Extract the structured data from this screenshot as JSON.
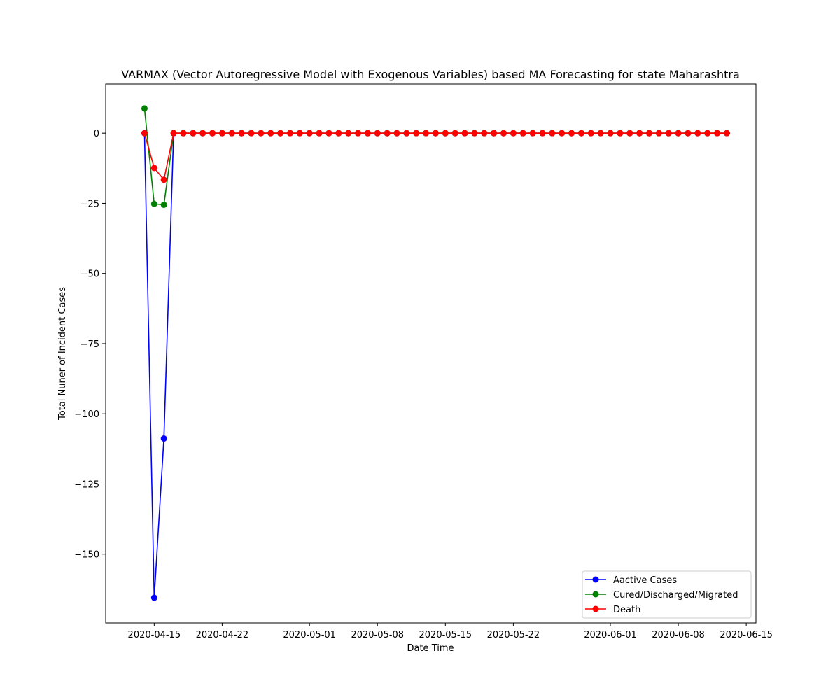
{
  "chart_data": {
    "type": "line",
    "title": "VARMAX (Vector Autoregressive Model with Exogenous Variables) based MA Forecasting for state Maharashtra",
    "xlabel": "Date Time",
    "ylabel": "Total Nuner of Incident Cases",
    "x_start": "2020-04-14",
    "x_end": "2020-06-13",
    "xlim": [
      "2020-04-10",
      "2020-06-16"
    ],
    "ylim": [
      -174.5,
      17.5
    ],
    "x_ticks": [
      "2020-04-15",
      "2020-04-22",
      "2020-05-01",
      "2020-05-08",
      "2020-05-15",
      "2020-05-22",
      "2020-06-01",
      "2020-06-08",
      "2020-06-15"
    ],
    "y_ticks": [
      0,
      -25,
      -50,
      -75,
      -100,
      -125,
      -150
    ],
    "y_tick_labels": [
      "0",
      "−25",
      "−50",
      "−75",
      "−100",
      "−125",
      "−150"
    ],
    "legend_position": "lower-right",
    "grid": false,
    "series": [
      {
        "name": "Aactive Cases",
        "color": "#0000ff",
        "values": [
          0,
          -165.5,
          -108.8,
          0,
          0,
          0,
          0,
          0,
          0,
          0,
          0,
          0,
          0,
          0,
          0,
          0,
          0,
          0,
          0,
          0,
          0,
          0,
          0,
          0,
          0,
          0,
          0,
          0,
          0,
          0,
          0,
          0,
          0,
          0,
          0,
          0,
          0,
          0,
          0,
          0,
          0,
          0,
          0,
          0,
          0,
          0,
          0,
          0,
          0,
          0,
          0,
          0,
          0,
          0,
          0,
          0,
          0,
          0,
          0,
          0,
          0
        ]
      },
      {
        "name": "Cured/Discharged/Migrated",
        "color": "#008000",
        "values": [
          8.8,
          -25.2,
          -25.5,
          0,
          0,
          0,
          0,
          0,
          0,
          0,
          0,
          0,
          0,
          0,
          0,
          0,
          0,
          0,
          0,
          0,
          0,
          0,
          0,
          0,
          0,
          0,
          0,
          0,
          0,
          0,
          0,
          0,
          0,
          0,
          0,
          0,
          0,
          0,
          0,
          0,
          0,
          0,
          0,
          0,
          0,
          0,
          0,
          0,
          0,
          0,
          0,
          0,
          0,
          0,
          0,
          0,
          0,
          0,
          0,
          0,
          0
        ]
      },
      {
        "name": "Death",
        "color": "#ff0000",
        "values": [
          0,
          -12.4,
          -16.6,
          0,
          0,
          0,
          0,
          0,
          0,
          0,
          0,
          0,
          0,
          0,
          0,
          0,
          0,
          0,
          0,
          0,
          0,
          0,
          0,
          0,
          0,
          0,
          0,
          0,
          0,
          0,
          0,
          0,
          0,
          0,
          0,
          0,
          0,
          0,
          0,
          0,
          0,
          0,
          0,
          0,
          0,
          0,
          0,
          0,
          0,
          0,
          0,
          0,
          0,
          0,
          0,
          0,
          0,
          0,
          0,
          0,
          0
        ]
      }
    ]
  }
}
